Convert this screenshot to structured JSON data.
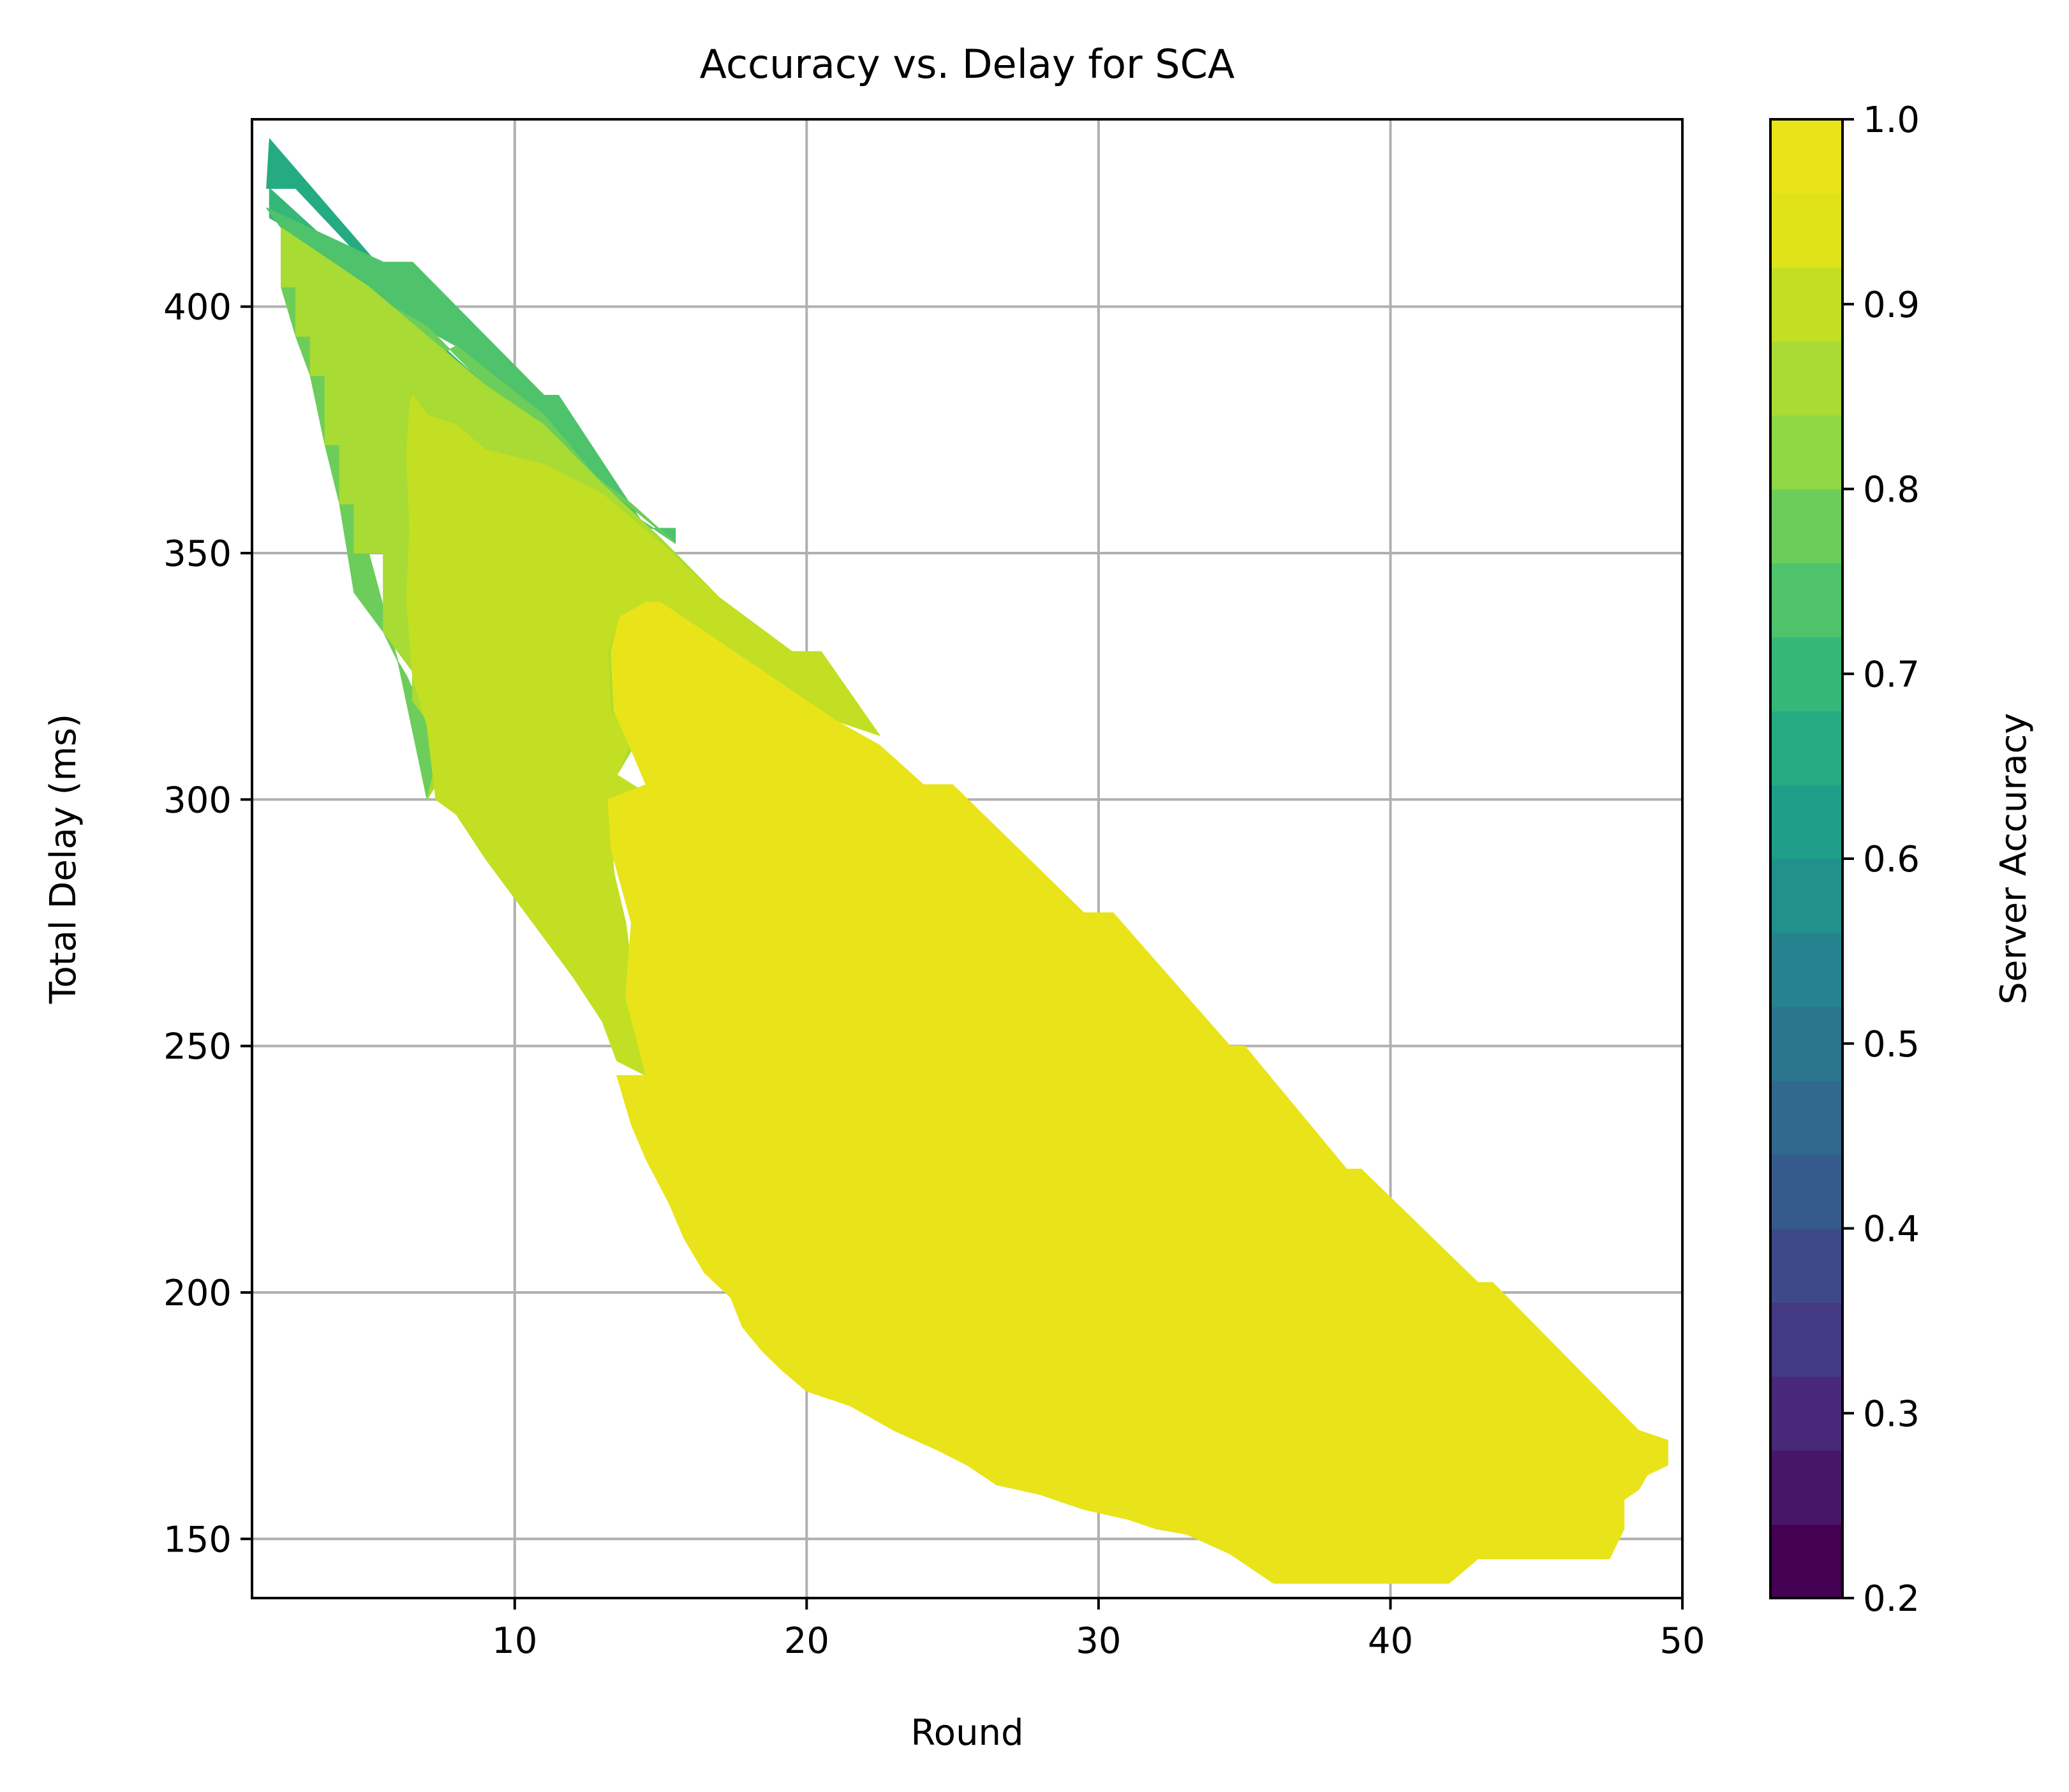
{
  "chart_data": {
    "type": "heatmap",
    "subtype": "filled-contour",
    "title": "Accuracy vs. Delay for SCA",
    "xlabel": "Round",
    "ylabel": "Total Delay (ms)",
    "xlim": [
      1,
      50
    ],
    "ylim": [
      138,
      438
    ],
    "xticks": [
      10,
      20,
      30,
      40,
      50
    ],
    "yticks": [
      150,
      200,
      250,
      300,
      350,
      400
    ],
    "grid": true,
    "colorbar": {
      "label": "Server Accuracy",
      "min": 0.2,
      "max": 1.0,
      "ticks": [
        0.2,
        0.3,
        0.4,
        0.5,
        0.6,
        0.7,
        0.8,
        0.9,
        1.0
      ],
      "levels": [
        0.2,
        0.24,
        0.28,
        0.32,
        0.36,
        0.4,
        0.44,
        0.48,
        0.52,
        0.56,
        0.6,
        0.64,
        0.68,
        0.72,
        0.76,
        0.8,
        0.84,
        0.88,
        0.92,
        0.96,
        1.0
      ],
      "colormap": "viridis",
      "colors": [
        "#440154",
        "#481668",
        "#482878",
        "#443983",
        "#3e4989",
        "#375a8c",
        "#31688e",
        "#2b758e",
        "#26828e",
        "#21918c",
        "#1f9e89",
        "#25ab82",
        "#35b779",
        "#4ec36b",
        "#6ccd5a",
        "#8fd744",
        "#a8db34",
        "#c2df23",
        "#dfe318",
        "#e8e419"
      ]
    },
    "regions": [
      {
        "level_range": [
          0.68,
          0.72
        ],
        "value": 0.7,
        "color": "#25ab82",
        "points": [
          [
            1.6,
            434
          ],
          [
            7,
            397
          ],
          [
            6,
            402
          ],
          [
            2.5,
            424
          ],
          [
            1.5,
            424
          ]
        ]
      },
      {
        "level_range": [
          0.76,
          0.8
        ],
        "value": 0.78,
        "color": "#35b779",
        "points": [
          [
            1.6,
            424
          ],
          [
            9,
            384
          ],
          [
            8,
            386
          ],
          [
            4,
            410
          ],
          [
            2.5,
            415
          ],
          [
            1.6,
            418
          ]
        ]
      },
      {
        "level_range": [
          0.8,
          0.84
        ],
        "value": 0.82,
        "color": "#4ec36b",
        "points": [
          [
            1.5,
            420
          ],
          [
            5.5,
            409
          ],
          [
            6.5,
            409
          ],
          [
            11,
            382
          ],
          [
            11.5,
            382
          ],
          [
            14.5,
            355
          ],
          [
            15.5,
            355
          ],
          [
            15.5,
            352
          ],
          [
            13,
            362
          ],
          [
            11,
            377
          ],
          [
            8,
            392
          ],
          [
            4,
            405
          ],
          [
            2.5,
            412
          ]
        ]
      },
      {
        "level_range": [
          0.84,
          0.88
        ],
        "value": 0.86,
        "color": "#6ccd5a",
        "points": [
          [
            2,
            416
          ],
          [
            2,
            404
          ],
          [
            2.5,
            394
          ],
          [
            3,
            386
          ],
          [
            3.5,
            372
          ],
          [
            4,
            360
          ],
          [
            4.5,
            342
          ],
          [
            5.5,
            334
          ],
          [
            6,
            328
          ],
          [
            6.3,
            325
          ],
          [
            7,
            316
          ],
          [
            7.5,
            312
          ],
          [
            7,
            300
          ],
          [
            6,
            328
          ],
          [
            5,
            350
          ],
          [
            5,
            372
          ],
          [
            6,
            386
          ],
          [
            8,
            392
          ],
          [
            11,
            378
          ],
          [
            13,
            364
          ],
          [
            15.5,
            352
          ],
          [
            14,
            360
          ],
          [
            10,
            378
          ],
          [
            7,
            396
          ],
          [
            4,
            406
          ],
          [
            2.5,
            413
          ]
        ]
      },
      {
        "level_range": [
          0.88,
          0.92
        ],
        "value": 0.9,
        "color": "#a8db34",
        "points": [
          [
            2,
            416
          ],
          [
            2,
            404
          ],
          [
            2.5,
            404
          ],
          [
            2.5,
            394
          ],
          [
            3,
            394
          ],
          [
            3,
            386
          ],
          [
            3.5,
            386
          ],
          [
            3.5,
            372
          ],
          [
            4,
            372
          ],
          [
            4,
            360
          ],
          [
            4.5,
            360
          ],
          [
            4.5,
            350
          ],
          [
            5.5,
            350
          ],
          [
            5.5,
            334
          ],
          [
            6.5,
            326
          ],
          [
            6.5,
            320
          ],
          [
            7.5,
            312
          ],
          [
            7,
            300
          ],
          [
            7.5,
            305
          ],
          [
            8.5,
            302
          ],
          [
            9,
            294
          ],
          [
            9.5,
            290
          ],
          [
            10,
            284
          ],
          [
            10.5,
            279
          ],
          [
            11,
            276
          ],
          [
            11.5,
            271
          ],
          [
            12,
            268
          ],
          [
            12.5,
            262
          ],
          [
            13,
            255
          ],
          [
            13.5,
            250
          ],
          [
            14.5,
            244
          ],
          [
            14,
            255
          ],
          [
            13.5,
            270
          ],
          [
            13,
            300
          ],
          [
            14,
            310
          ],
          [
            13.5,
            325
          ],
          [
            13.5,
            332
          ],
          [
            14.5,
            336
          ],
          [
            17,
            333
          ],
          [
            20,
            322
          ],
          [
            21,
            317
          ],
          [
            20,
            320
          ],
          [
            17,
            341
          ],
          [
            15,
            353
          ],
          [
            13,
            364
          ],
          [
            11,
            376
          ],
          [
            9,
            384
          ],
          [
            7,
            394
          ],
          [
            5,
            404
          ],
          [
            3,
            412
          ]
        ]
      },
      {
        "level_range": [
          0.92,
          0.96
        ],
        "value": 0.94,
        "color": "#c2df23",
        "points": [
          [
            6.5,
            382
          ],
          [
            7,
            378
          ],
          [
            8,
            376
          ],
          [
            9,
            371
          ],
          [
            11,
            368
          ],
          [
            13,
            362
          ],
          [
            15,
            352
          ],
          [
            17,
            341
          ],
          [
            19.5,
            330
          ],
          [
            20.5,
            330
          ],
          [
            22.5,
            313
          ],
          [
            21,
            316
          ],
          [
            19,
            324
          ],
          [
            16,
            336
          ],
          [
            14.5,
            340
          ],
          [
            13.6,
            337
          ],
          [
            13.2,
            330
          ],
          [
            13.3,
            318
          ],
          [
            14,
            312
          ],
          [
            13.5,
            305
          ],
          [
            14.3,
            302
          ],
          [
            13.2,
            300
          ],
          [
            13.4,
            285
          ],
          [
            13.8,
            275
          ],
          [
            14,
            266
          ],
          [
            14,
            258
          ],
          [
            14.5,
            244
          ],
          [
            13.5,
            247
          ],
          [
            13,
            255
          ],
          [
            12,
            264
          ],
          [
            11,
            272
          ],
          [
            10,
            280
          ],
          [
            9,
            288
          ],
          [
            8,
            297
          ],
          [
            7.3,
            300
          ],
          [
            7,
            315
          ],
          [
            6.5,
            325
          ],
          [
            6.3,
            340
          ],
          [
            6.4,
            355
          ],
          [
            6.3,
            370
          ],
          [
            6.4,
            380
          ]
        ]
      },
      {
        "level_range": [
          0.96,
          1.0
        ],
        "value": 0.98,
        "color": "#e8e419",
        "points": [
          [
            14.5,
            340
          ],
          [
            15,
            340
          ],
          [
            19,
            324
          ],
          [
            21,
            316
          ],
          [
            22.5,
            311
          ],
          [
            24,
            303
          ],
          [
            25,
            303
          ],
          [
            29.5,
            277
          ],
          [
            30.5,
            277
          ],
          [
            34.5,
            250
          ],
          [
            35,
            250
          ],
          [
            38.5,
            225
          ],
          [
            39,
            225
          ],
          [
            43,
            202
          ],
          [
            43.5,
            202
          ],
          [
            48.5,
            172
          ],
          [
            49.5,
            170
          ],
          [
            49.5,
            165
          ],
          [
            48.8,
            163
          ],
          [
            48.5,
            160
          ],
          [
            48,
            158
          ],
          [
            48,
            152
          ],
          [
            47.5,
            146
          ],
          [
            47,
            146
          ],
          [
            43,
            146
          ],
          [
            42,
            141
          ],
          [
            36,
            141
          ],
          [
            35.5,
            143
          ],
          [
            34.5,
            147
          ],
          [
            33,
            151
          ],
          [
            32,
            152
          ],
          [
            31,
            154
          ],
          [
            29.5,
            156
          ],
          [
            28,
            159
          ],
          [
            26.5,
            161
          ],
          [
            25.5,
            165
          ],
          [
            24.5,
            168
          ],
          [
            23,
            172
          ],
          [
            21.5,
            177
          ],
          [
            20,
            180
          ],
          [
            19.2,
            184
          ],
          [
            18.5,
            188
          ],
          [
            17.8,
            193
          ],
          [
            17.4,
            199
          ],
          [
            16.5,
            204
          ],
          [
            15.8,
            211
          ],
          [
            15.3,
            218
          ],
          [
            14.5,
            227
          ],
          [
            14,
            234
          ],
          [
            13.5,
            244
          ],
          [
            14.5,
            244
          ],
          [
            13.8,
            260
          ],
          [
            14,
            275
          ],
          [
            13.3,
            290
          ],
          [
            13.2,
            300
          ],
          [
            14.5,
            303
          ],
          [
            14,
            310
          ],
          [
            13.4,
            318
          ],
          [
            13.3,
            330
          ],
          [
            13.6,
            337
          ]
        ]
      }
    ]
  }
}
